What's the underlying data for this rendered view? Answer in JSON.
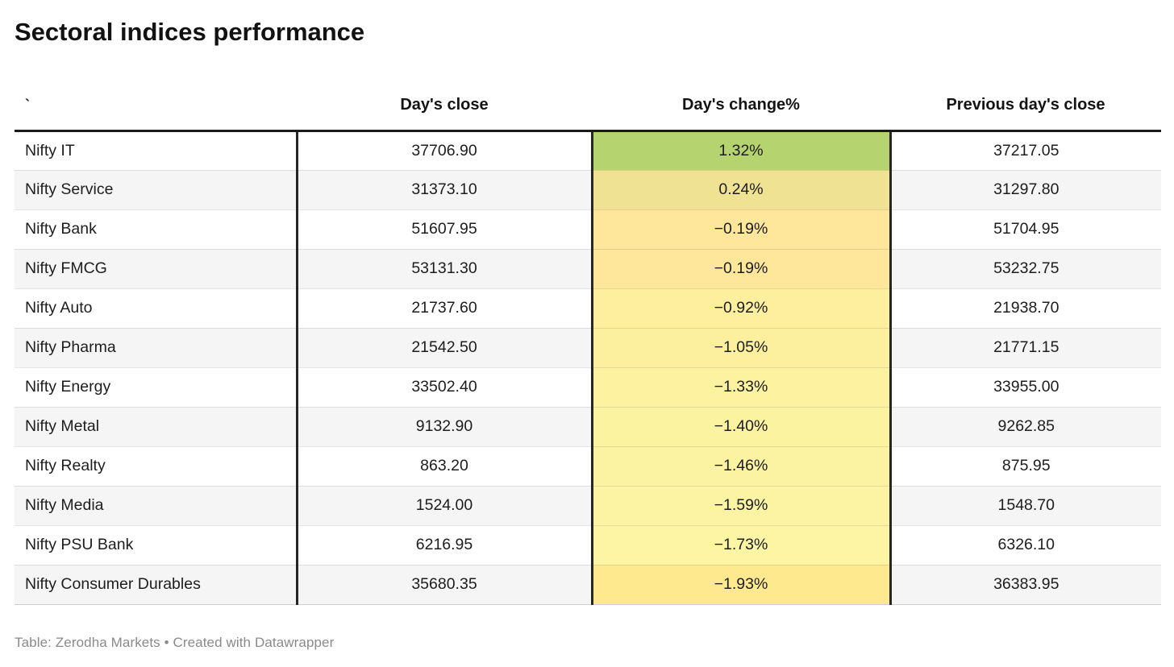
{
  "title": "Sectoral indices performance",
  "footer": "Table: Zerodha Markets • Created with Datawrapper",
  "table": {
    "columns": [
      "`",
      "Day's close",
      "Day's change%",
      "Previous day's close"
    ],
    "rows": [
      {
        "name": "Nifty IT",
        "close": "37706.90",
        "change": "1.32%",
        "prev": "37217.05",
        "bg": "#b5d36e"
      },
      {
        "name": "Nifty Service",
        "close": "31373.10",
        "change": "0.24%",
        "prev": "31297.80",
        "bg": "#f0e293"
      },
      {
        "name": "Nifty Bank",
        "close": "51607.95",
        "change": "−0.19%",
        "prev": "51704.95",
        "bg": "#fee69a"
      },
      {
        "name": "Nifty FMCG",
        "close": "53131.30",
        "change": "−0.19%",
        "prev": "53232.75",
        "bg": "#fee69a"
      },
      {
        "name": "Nifty Auto",
        "close": "21737.60",
        "change": "−0.92%",
        "prev": "21938.70",
        "bg": "#fdef9d"
      },
      {
        "name": "Nifty Pharma",
        "close": "21542.50",
        "change": "−1.05%",
        "prev": "21771.15",
        "bg": "#fcf09e"
      },
      {
        "name": "Nifty Energy",
        "close": "33502.40",
        "change": "−1.33%",
        "prev": "33955.00",
        "bg": "#fcf2a0"
      },
      {
        "name": "Nifty Metal",
        "close": "9132.90",
        "change": "−1.40%",
        "prev": "9262.85",
        "bg": "#fcf3a1"
      },
      {
        "name": "Nifty Realty",
        "close": "863.20",
        "change": "−1.46%",
        "prev": "875.95",
        "bg": "#fcf3a2"
      },
      {
        "name": "Nifty Media",
        "close": "1524.00",
        "change": "−1.59%",
        "prev": "1548.70",
        "bg": "#fdf4a3"
      },
      {
        "name": "Nifty PSU Bank",
        "close": "6216.95",
        "change": "−1.73%",
        "prev": "6326.10",
        "bg": "#fdf5a4"
      },
      {
        "name": "Nifty Consumer Durables",
        "close": "35680.35",
        "change": "−1.93%",
        "prev": "36383.95",
        "bg": "#ffe98f"
      }
    ]
  },
  "chart_data": {
    "type": "table",
    "title": "Sectoral indices performance",
    "columns": [
      "`",
      "Day's close",
      "Day's change%",
      "Previous day's close"
    ],
    "heatmap_column": "Day's change%",
    "heatmap_range_pct": [
      -1.93,
      1.32
    ],
    "rows": [
      {
        "index": "Nifty IT",
        "days_close": 37706.9,
        "days_change_pct": 1.32,
        "previous_days_close": 37217.05
      },
      {
        "index": "Nifty Service",
        "days_close": 31373.1,
        "days_change_pct": 0.24,
        "previous_days_close": 31297.8
      },
      {
        "index": "Nifty Bank",
        "days_close": 51607.95,
        "days_change_pct": -0.19,
        "previous_days_close": 51704.95
      },
      {
        "index": "Nifty FMCG",
        "days_close": 53131.3,
        "days_change_pct": -0.19,
        "previous_days_close": 53232.75
      },
      {
        "index": "Nifty Auto",
        "days_close": 21737.6,
        "days_change_pct": -0.92,
        "previous_days_close": 21938.7
      },
      {
        "index": "Nifty Pharma",
        "days_close": 21542.5,
        "days_change_pct": -1.05,
        "previous_days_close": 21771.15
      },
      {
        "index": "Nifty Energy",
        "days_close": 33502.4,
        "days_change_pct": -1.33,
        "previous_days_close": 33955.0
      },
      {
        "index": "Nifty Metal",
        "days_close": 9132.9,
        "days_change_pct": -1.4,
        "previous_days_close": 9262.85
      },
      {
        "index": "Nifty Realty",
        "days_close": 863.2,
        "days_change_pct": -1.46,
        "previous_days_close": 875.95
      },
      {
        "index": "Nifty Media",
        "days_close": 1524.0,
        "days_change_pct": -1.59,
        "previous_days_close": 1548.7
      },
      {
        "index": "Nifty PSU Bank",
        "days_close": 6216.95,
        "days_change_pct": -1.73,
        "previous_days_close": 6326.1
      },
      {
        "index": "Nifty Consumer Durables",
        "days_close": 35680.35,
        "days_change_pct": -1.93,
        "previous_days_close": 36383.95
      }
    ]
  }
}
